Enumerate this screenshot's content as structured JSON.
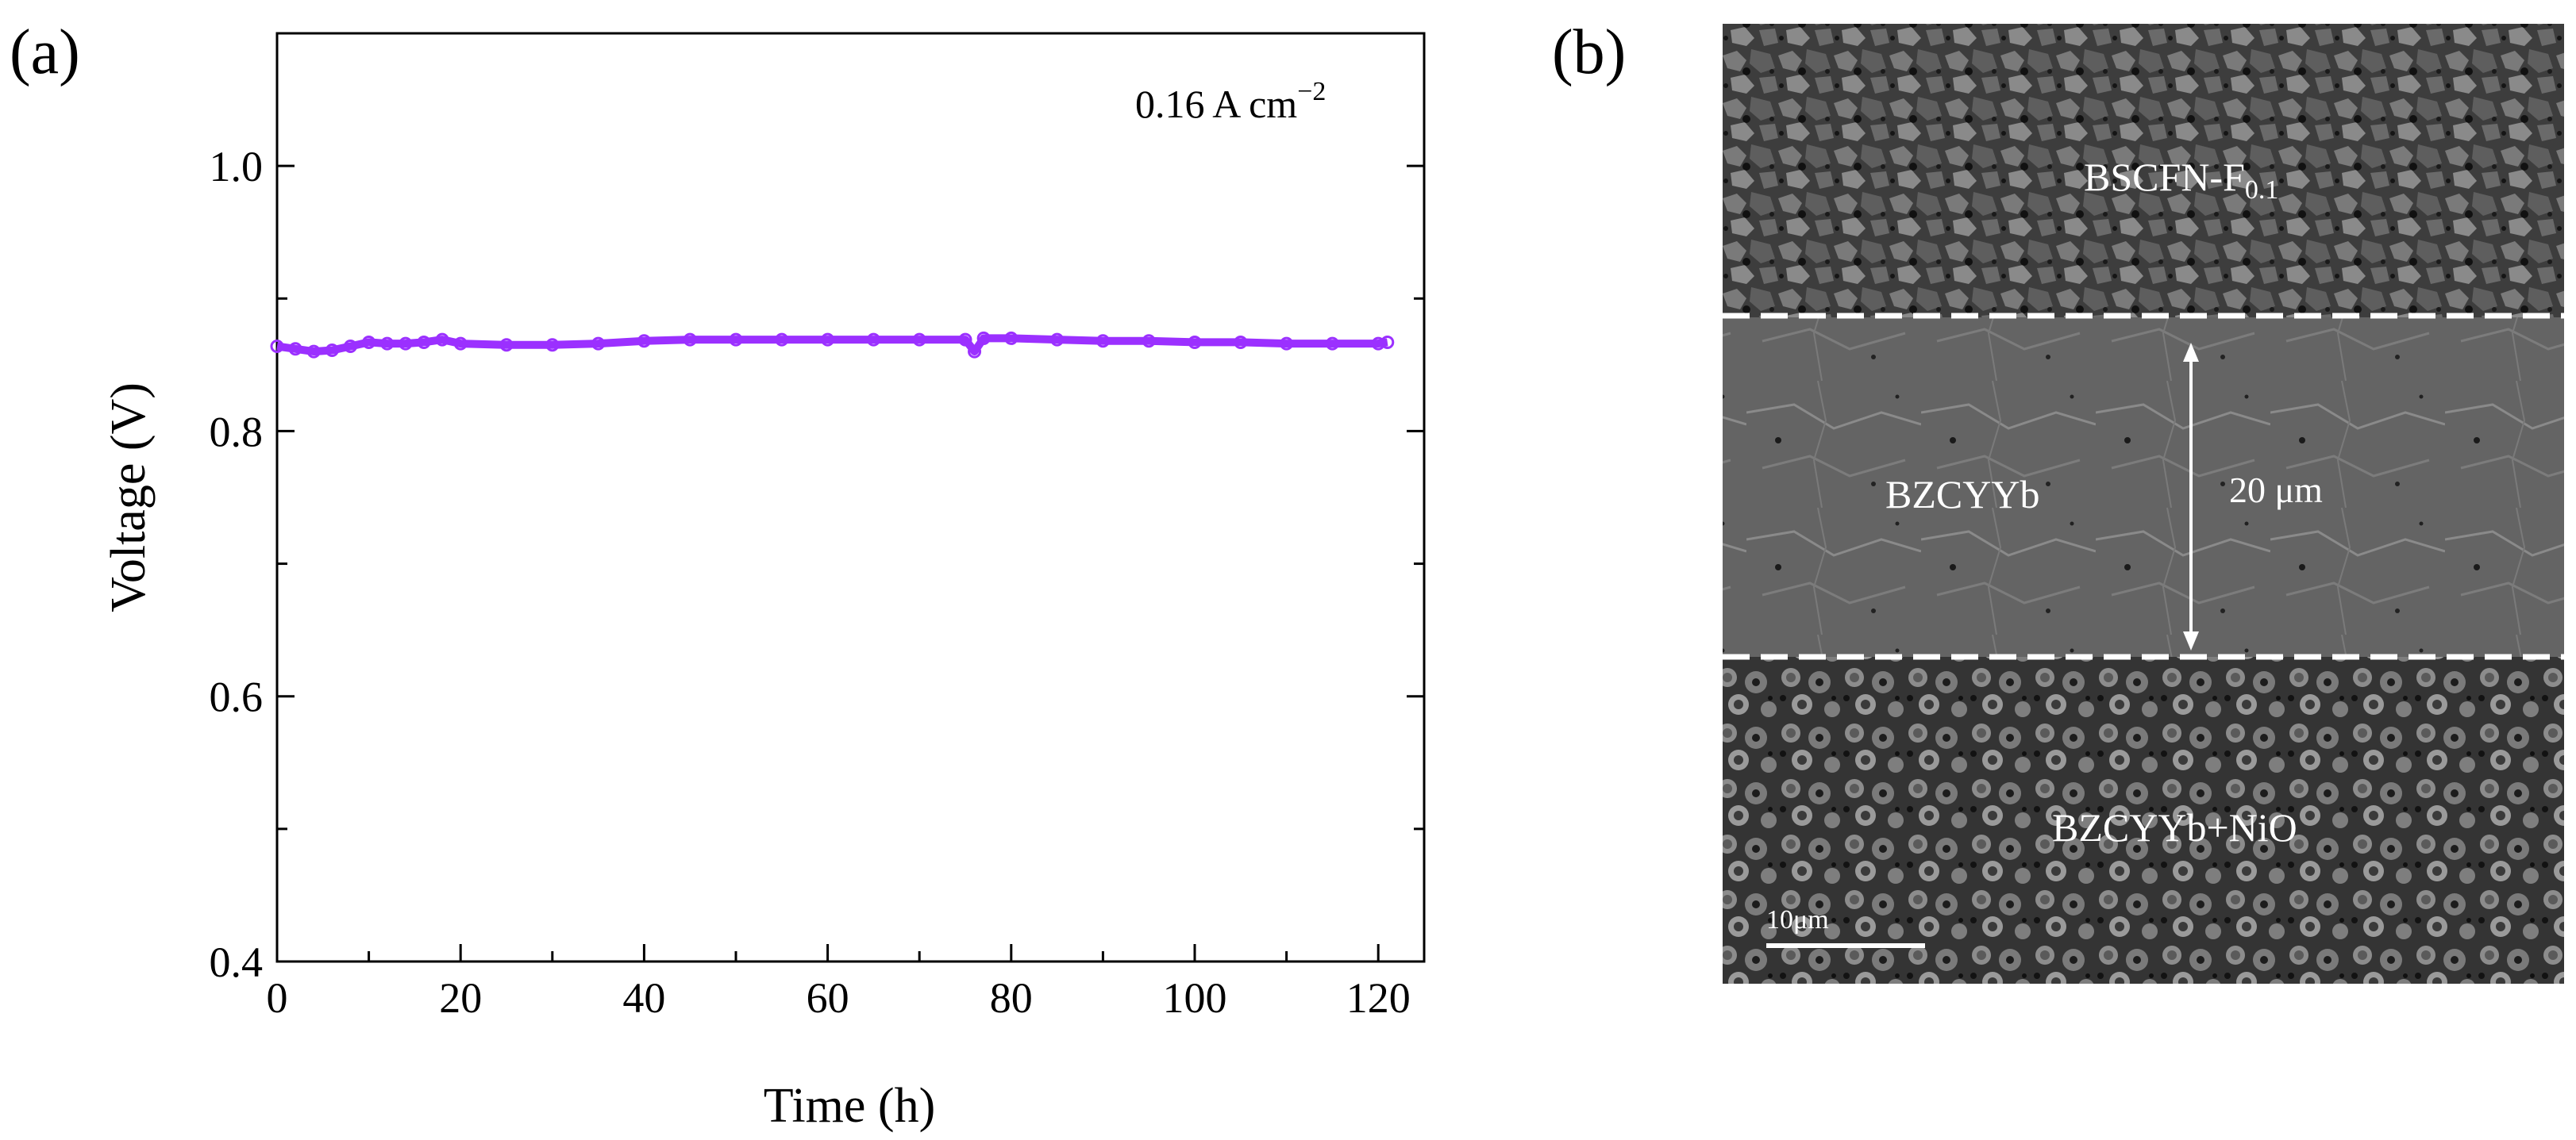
{
  "panel_a": {
    "label": "(a)",
    "annotation": {
      "prefix": "0.16 A cm",
      "superscript": "−2"
    },
    "chart_data": {
      "type": "line",
      "title": "",
      "xlabel": "Time (h)",
      "ylabel": "Voltage (V)",
      "xlim": [
        0,
        125
      ],
      "ylim": [
        0.4,
        1.1
      ],
      "xticks": [
        0,
        20,
        40,
        60,
        80,
        100,
        120
      ],
      "yticks": [
        0.4,
        0.6,
        0.8,
        1.0
      ],
      "xtick_labels": [
        "0",
        "20",
        "40",
        "60",
        "80",
        "100",
        "120"
      ],
      "ytick_labels": [
        "0.4",
        "0.6",
        "0.8",
        "1.0"
      ],
      "series": [
        {
          "name": "0.16 A cm−2",
          "color": "#9b30ff",
          "x": [
            0,
            2,
            4,
            6,
            8,
            10,
            12,
            14,
            16,
            18,
            20,
            25,
            30,
            35,
            40,
            45,
            50,
            55,
            60,
            65,
            70,
            75,
            76,
            77,
            80,
            85,
            90,
            95,
            100,
            105,
            110,
            115,
            120,
            121
          ],
          "y": [
            0.864,
            0.862,
            0.86,
            0.861,
            0.864,
            0.867,
            0.866,
            0.866,
            0.867,
            0.869,
            0.866,
            0.865,
            0.865,
            0.866,
            0.868,
            0.869,
            0.869,
            0.869,
            0.869,
            0.869,
            0.869,
            0.869,
            0.86,
            0.87,
            0.87,
            0.869,
            0.868,
            0.868,
            0.867,
            0.867,
            0.866,
            0.866,
            0.866,
            0.867
          ]
        }
      ]
    }
  },
  "panel_b": {
    "label": "(b)",
    "layer_top": "BSCFN-F",
    "layer_top_sub": "0.1",
    "layer_middle": "BZCYYb",
    "thickness": "20 μm",
    "layer_bottom": "BZCYYb+NiO",
    "scale_bar": "10μm"
  }
}
